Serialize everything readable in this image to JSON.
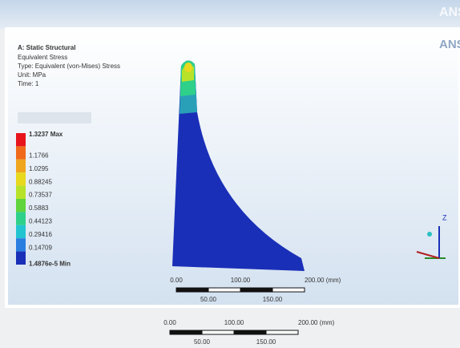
{
  "header": {
    "brand": "ANSYS"
  },
  "result": {
    "title": "A: Static Structural",
    "lines": [
      "Equivalent Stress",
      "Type: Equivalent (von-Mises) Stress",
      "Unit: MPa",
      "Time: 1"
    ]
  },
  "legend": {
    "labels": [
      "1.3237 Max",
      "1.1766",
      "1.0295",
      "0.88245",
      "0.73537",
      "0.5883",
      "0.44123",
      "0.29416",
      "0.14709",
      "1.4876e-5 Min"
    ],
    "colors": [
      "#e8141c",
      "#f06a1a",
      "#f0a51e",
      "#e8d81e",
      "#b8e22a",
      "#5fd43c",
      "#2ed08a",
      "#22c4d0",
      "#2a7ee0",
      "#1a2fb8"
    ]
  },
  "triad": {
    "z": "Z"
  },
  "scale_bar": {
    "top": [
      "0.00",
      "100.00",
      "200.00 (mm)"
    ],
    "bottom": [
      "50.00",
      "150.00"
    ]
  },
  "scale_bar_2": {
    "top": [
      "0.00",
      "100.00",
      "200.00 (mm)"
    ],
    "bottom": [
      "50.00",
      "150.00"
    ]
  }
}
